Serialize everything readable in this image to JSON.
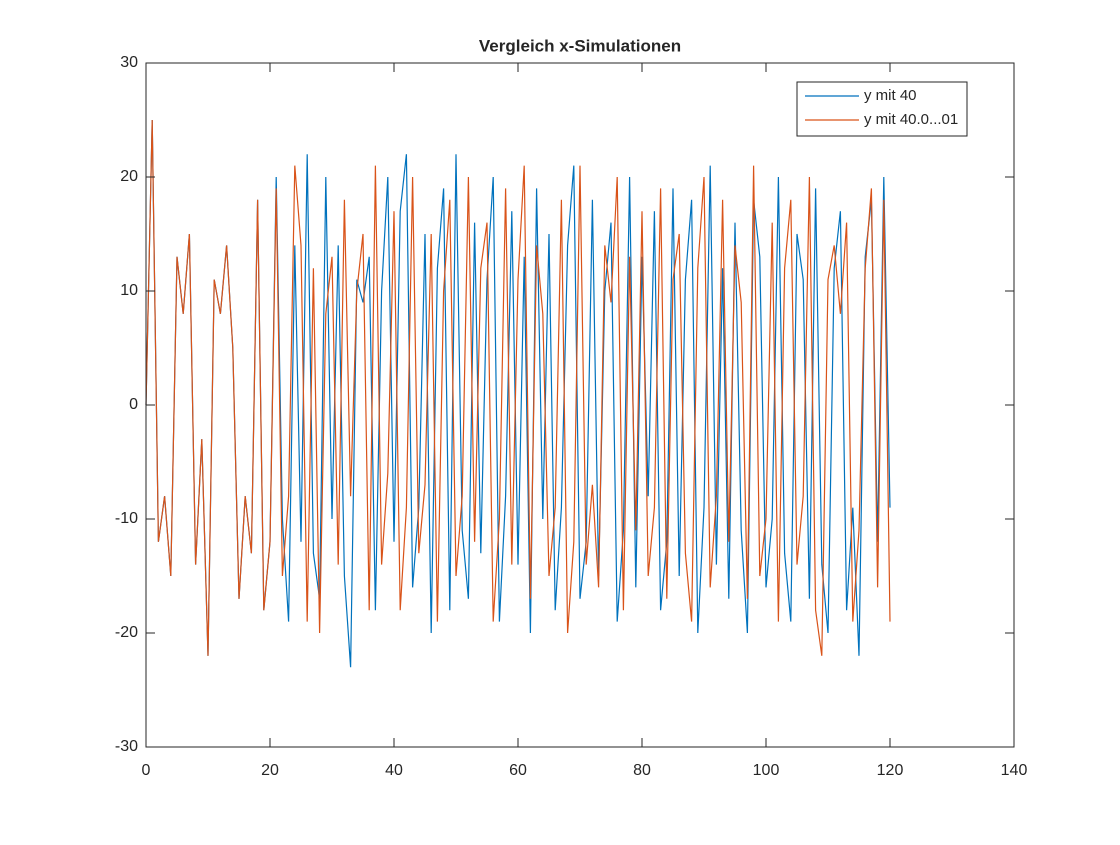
{
  "chart_data": {
    "type": "line",
    "title": "Vergleich x-Simulationen",
    "x": [
      0,
      1,
      2,
      3,
      4,
      5,
      6,
      7,
      8,
      9,
      10,
      11,
      12,
      13,
      14,
      15,
      16,
      17,
      18,
      19,
      20,
      21,
      22,
      23,
      24,
      25,
      26,
      27,
      28,
      29,
      30,
      31,
      32,
      33,
      34,
      35,
      36,
      37,
      38,
      39,
      40,
      41,
      42,
      43,
      44,
      45,
      46,
      47,
      48,
      49,
      50,
      51,
      52,
      53,
      54,
      55,
      56,
      57,
      58,
      59,
      60,
      61,
      62,
      63,
      64,
      65,
      66,
      67,
      68,
      69,
      70,
      71,
      72,
      73,
      74,
      75,
      76,
      77,
      78,
      79,
      80,
      81,
      82,
      83,
      84,
      85,
      86,
      87,
      88,
      89,
      90,
      91,
      92,
      93,
      94,
      95,
      96,
      97,
      98,
      99,
      100,
      101,
      102,
      103,
      104,
      105,
      106,
      107,
      108,
      109,
      110,
      111,
      112,
      113,
      114,
      115,
      116,
      117,
      118,
      119,
      120
    ],
    "series": [
      {
        "name": "y mit 40",
        "color": "#0072BD",
        "values": [
          0,
          25,
          -12,
          -8,
          -15,
          13,
          8,
          15,
          -14,
          -3,
          -22,
          11,
          8,
          14,
          5,
          -17,
          -8,
          -13,
          18,
          -18,
          -12,
          20,
          -10,
          -19,
          14,
          -12,
          22,
          -13,
          -17,
          20,
          -10,
          14,
          -15,
          -23,
          11,
          9,
          13,
          -18,
          10,
          20,
          -12,
          17,
          22,
          -16,
          -9,
          15,
          -20,
          12,
          19,
          -18,
          22,
          -11,
          -17,
          16,
          -13,
          11,
          20,
          -19,
          -8,
          17,
          -14,
          13,
          -20,
          19,
          -10,
          15,
          -18,
          -9,
          14,
          21,
          -17,
          -12,
          18,
          -15,
          10,
          16,
          -19,
          -11,
          20,
          -16,
          13,
          -8,
          17,
          -18,
          -12,
          19,
          -15,
          11,
          18,
          -20,
          -9,
          21,
          -14,
          12,
          -17,
          16,
          -11,
          -20,
          18,
          13,
          -16,
          -10,
          20,
          -13,
          -19,
          15,
          11,
          -17,
          19,
          -14,
          -20,
          12,
          17,
          -18,
          -9,
          -22,
          13,
          18,
          -12,
          20,
          -9
        ]
      },
      {
        "name": "y mit 40.0...01",
        "color": "#D95319",
        "values": [
          0,
          25,
          -12,
          -8,
          -15,
          13,
          8,
          15,
          -14,
          -3,
          -22,
          11,
          8,
          14,
          5,
          -17,
          -8,
          -13,
          18,
          -18,
          -12,
          19,
          -15,
          -8,
          21,
          14,
          -19,
          12,
          -20,
          8,
          13,
          -14,
          18,
          -8,
          10,
          15,
          -18,
          21,
          -14,
          -6,
          17,
          -18,
          -9,
          20,
          -13,
          -7,
          15,
          -19,
          10,
          18,
          -15,
          -8,
          20,
          -12,
          12,
          16,
          -19,
          -10,
          19,
          -14,
          11,
          21,
          -17,
          14,
          8,
          -15,
          -9,
          18,
          -20,
          -12,
          21,
          -14,
          -7,
          -16,
          14,
          9,
          20,
          -18,
          13,
          -11,
          17,
          -15,
          -9,
          19,
          -17,
          11,
          15,
          -13,
          -19,
          12,
          20,
          -16,
          -8,
          18,
          -12,
          14,
          9,
          -17,
          21,
          -15,
          -10,
          16,
          -19,
          12,
          18,
          -14,
          -8,
          20,
          -18,
          -22,
          11,
          14,
          8,
          16,
          -19,
          -11,
          12,
          19,
          -16,
          18,
          -19
        ]
      }
    ],
    "xlim": [
      0,
      140
    ],
    "ylim": [
      -30,
      30
    ],
    "xticks": [
      0,
      20,
      40,
      60,
      80,
      100,
      120,
      140
    ],
    "yticks": [
      -30,
      -20,
      -10,
      0,
      10,
      20,
      30
    ],
    "grid": false,
    "legend": "northeast"
  }
}
